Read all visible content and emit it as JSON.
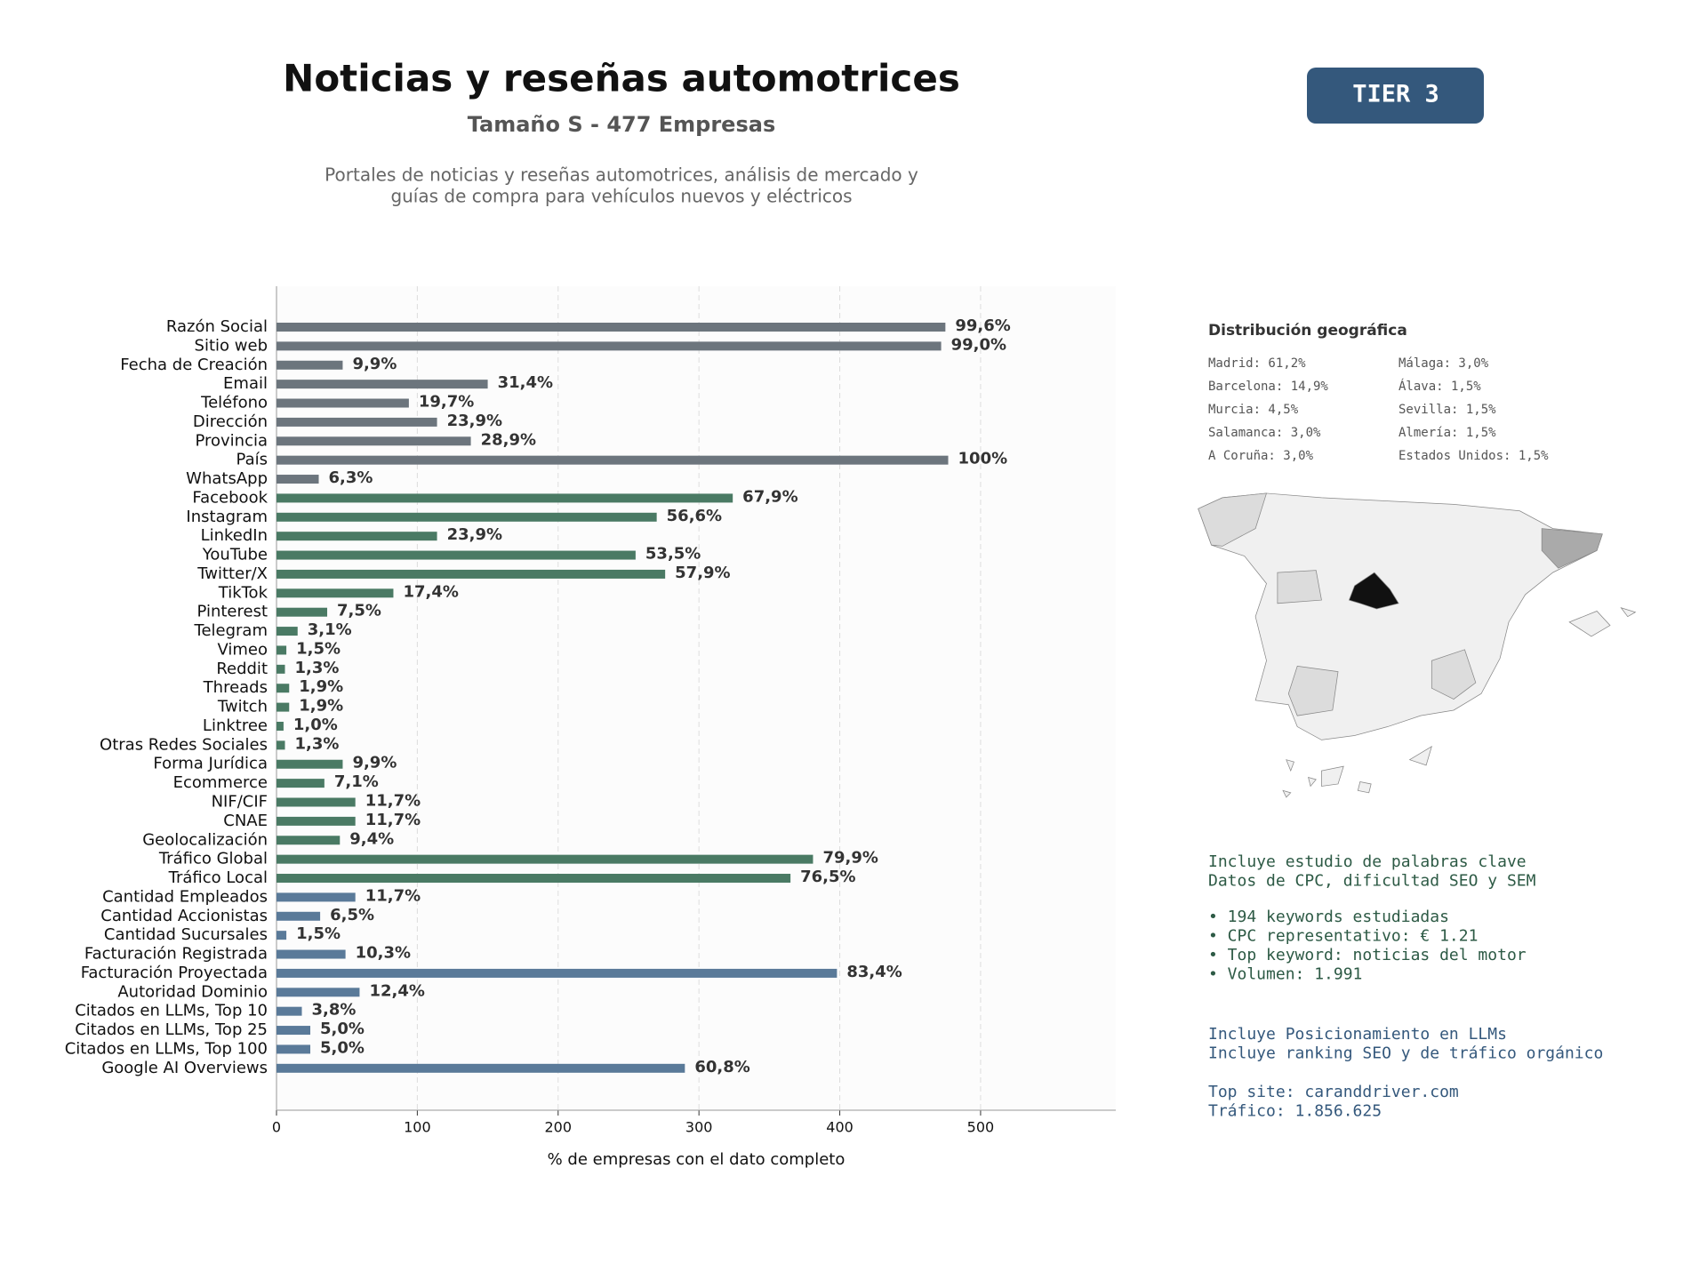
{
  "chart_data": {
    "type": "barh",
    "title": "Noticias y reseñas automotrices",
    "subtitle": "Tamaño S - 477 Empresas",
    "description": [
      "Portales de noticias y reseñas automotrices, análisis de mercado y",
      "guías de compra para vehículos nuevos y eléctricos"
    ],
    "xlabel": "% de empresas con el dato completo",
    "categories": [
      "Razón Social",
      "Sitio web",
      "Fecha de Creación",
      "Email",
      "Teléfono",
      "Dirección",
      "Provincia",
      "País",
      "WhatsApp",
      "Facebook",
      "Instagram",
      "LinkedIn",
      "YouTube",
      "Twitter/X",
      "TikTok",
      "Pinterest",
      "Telegram",
      "Vimeo",
      "Reddit",
      "Threads",
      "Twitch",
      "Linktree",
      "Otras Redes Sociales",
      "Forma Jurídica",
      "Ecommerce",
      "NIF/CIF",
      "CNAE",
      "Geolocalización",
      "Tráfico Global",
      "Tráfico Local",
      "Cantidad Empleados",
      "Cantidad Accionistas",
      "Cantidad Sucursales",
      "Facturación Registrada",
      "Facturación Proyectada",
      "Autoridad Dominio",
      "Citados en LLMs, Top 10",
      "Citados en LLMs, Top 25",
      "Citados en LLMs, Top 100",
      "Google AI Overviews"
    ],
    "values": [
      475,
      472,
      47,
      150,
      94,
      114,
      138,
      477,
      30,
      324,
      270,
      114,
      255,
      276,
      83,
      36,
      15,
      7,
      6,
      9,
      9,
      5,
      6,
      47,
      34,
      56,
      56,
      45,
      381,
      365,
      56,
      31,
      7,
      49,
      398,
      59,
      18,
      24,
      24,
      290
    ],
    "value_labels": [
      "99,6%",
      "99,0%",
      "9,9%",
      "31,4%",
      "19,7%",
      "23,9%",
      "28,9%",
      "100%",
      "6,3%",
      "67,9%",
      "56,6%",
      "23,9%",
      "53,5%",
      "57,9%",
      "17,4%",
      "7,5%",
      "3,1%",
      "1,5%",
      "1,3%",
      "1,9%",
      "1,9%",
      "1,0%",
      "1,3%",
      "9,9%",
      "7,1%",
      "11,7%",
      "11,7%",
      "9,4%",
      "79,9%",
      "76,5%",
      "11,7%",
      "6,5%",
      "1,5%",
      "10,3%",
      "83,4%",
      "12,4%",
      "3,8%",
      "5,0%",
      "5,0%",
      "60,8%"
    ],
    "colors": [
      "#6c757d",
      "#6c757d",
      "#6c757d",
      "#6c757d",
      "#6c757d",
      "#6c757d",
      "#6c757d",
      "#6c757d",
      "#6c757d",
      "#4a7a64",
      "#4a7a64",
      "#4a7a64",
      "#4a7a64",
      "#4a7a64",
      "#4a7a64",
      "#4a7a64",
      "#4a7a64",
      "#4a7a64",
      "#4a7a64",
      "#4a7a64",
      "#4a7a64",
      "#4a7a64",
      "#4a7a64",
      "#4a7a64",
      "#4a7a64",
      "#4a7a64",
      "#4a7a64",
      "#4a7a64",
      "#4a7a64",
      "#4a7a64",
      "#5a7a99",
      "#5a7a99",
      "#5a7a99",
      "#5a7a99",
      "#5a7a99",
      "#5a7a99",
      "#5a7a99",
      "#5a7a99",
      "#5a7a99",
      "#5a7a99"
    ],
    "xlim": [
      0,
      596
    ],
    "xticks": [
      0,
      100,
      200,
      300,
      400,
      500
    ],
    "grid": true
  },
  "badge": "TIER 3",
  "geo": {
    "title": "Distribución geográfica",
    "items": [
      "Madrid: 61,2%",
      "Barcelona: 14,9%",
      "Murcia: 4,5%",
      "Salamanca: 3,0%",
      "A Coruña: 3,0%",
      "Málaga: 3,0%",
      "Álava: 1,5%",
      "Sevilla: 1,5%",
      "Almería: 1,5%",
      "Estados Unidos: 1,5%"
    ]
  },
  "panel": {
    "keywords": [
      "Incluye estudio de palabras clave",
      "Datos de CPC, dificultad SEO y SEM"
    ],
    "bullets": [
      "• 194 keywords estudiadas",
      "• CPC representativo: € 1.21",
      "• Top keyword: noticias del motor",
      "• Volumen: 1.991"
    ],
    "llm": [
      "Incluye Posicionamiento en LLMs",
      "Incluye ranking SEO y de tráfico orgánico"
    ],
    "site": [
      "Top site: caranddriver.com",
      "Tráfico: 1.856.625"
    ]
  }
}
